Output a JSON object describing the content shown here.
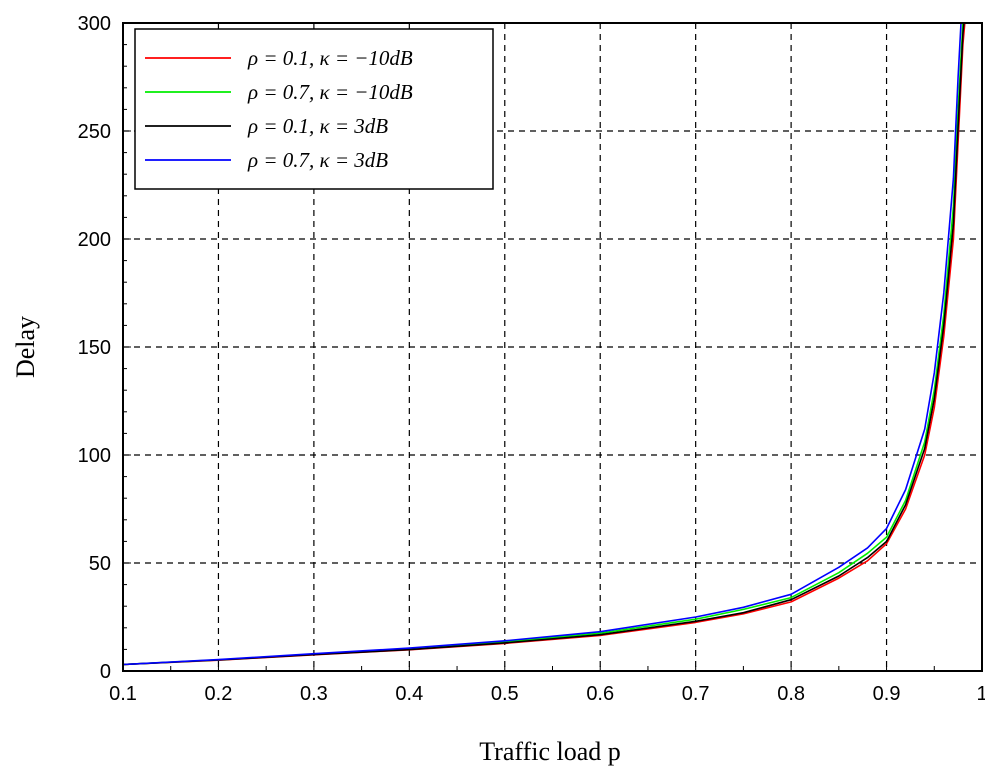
{
  "chart_data": {
    "type": "line",
    "title": "",
    "xlabel": "Traffic load p",
    "ylabel": "Delay",
    "xlim": [
      0.1,
      1
    ],
    "ylim": [
      0,
      300
    ],
    "xticks": [
      0.1,
      0.2,
      0.3,
      0.4,
      0.5,
      0.6,
      0.7,
      0.8,
      0.9,
      1
    ],
    "xtick_labels": [
      "0.1",
      "0.2",
      "0.3",
      "0.4",
      "0.5",
      "0.6",
      "0.7",
      "0.8",
      "0.9",
      "1"
    ],
    "yticks": [
      0,
      50,
      100,
      150,
      200,
      250,
      300
    ],
    "ytick_labels": [
      "0",
      "50",
      "100",
      "150",
      "200",
      "250",
      "300"
    ],
    "grid": true,
    "legend_position": "top-left",
    "series": [
      {
        "name": "ρ = 0.1, κ = −10dB",
        "color": "#ff0000",
        "x": [
          0.1,
          0.2,
          0.3,
          0.4,
          0.5,
          0.6,
          0.7,
          0.75,
          0.8,
          0.85,
          0.88,
          0.9,
          0.92,
          0.94,
          0.95,
          0.96,
          0.97,
          0.975,
          0.98,
          0.982
        ],
        "y": [
          3,
          5,
          7.5,
          9.8,
          12.8,
          16.5,
          22.5,
          26.5,
          32,
          43,
          51,
          59,
          75,
          100,
          122,
          155,
          200,
          245,
          290,
          300
        ]
      },
      {
        "name": "ρ = 0.7, κ = −10dB",
        "color": "#00ee00",
        "x": [
          0.1,
          0.2,
          0.3,
          0.4,
          0.5,
          0.6,
          0.7,
          0.75,
          0.8,
          0.85,
          0.88,
          0.9,
          0.92,
          0.94,
          0.95,
          0.96,
          0.97,
          0.975,
          0.98
        ],
        "y": [
          3,
          5.2,
          7.8,
          10.3,
          13.5,
          17.5,
          24,
          28.5,
          34,
          45.5,
          54.5,
          62,
          79,
          106,
          130,
          165,
          215,
          260,
          300
        ]
      },
      {
        "name": "ρ = 0.1, κ = 3dB",
        "color": "#000000",
        "x": [
          0.1,
          0.2,
          0.3,
          0.4,
          0.5,
          0.6,
          0.7,
          0.75,
          0.8,
          0.85,
          0.88,
          0.9,
          0.92,
          0.94,
          0.95,
          0.96,
          0.97,
          0.975,
          0.98,
          0.981
        ],
        "y": [
          3,
          5.1,
          7.6,
          9.9,
          13,
          16.8,
          23,
          27,
          33,
          44,
          52.5,
          60,
          77,
          103,
          126,
          160,
          207,
          252,
          295,
          300
        ]
      },
      {
        "name": "ρ = 0.7, κ = 3dB",
        "color": "#0000ff",
        "x": [
          0.1,
          0.2,
          0.3,
          0.4,
          0.5,
          0.6,
          0.7,
          0.75,
          0.8,
          0.85,
          0.88,
          0.9,
          0.92,
          0.94,
          0.95,
          0.96,
          0.97,
          0.975,
          0.978
        ],
        "y": [
          3,
          5.3,
          8,
          10.6,
          14,
          18.2,
          25,
          29.5,
          35.5,
          48,
          57,
          66,
          84,
          112,
          138,
          175,
          228,
          275,
          300
        ]
      }
    ]
  }
}
